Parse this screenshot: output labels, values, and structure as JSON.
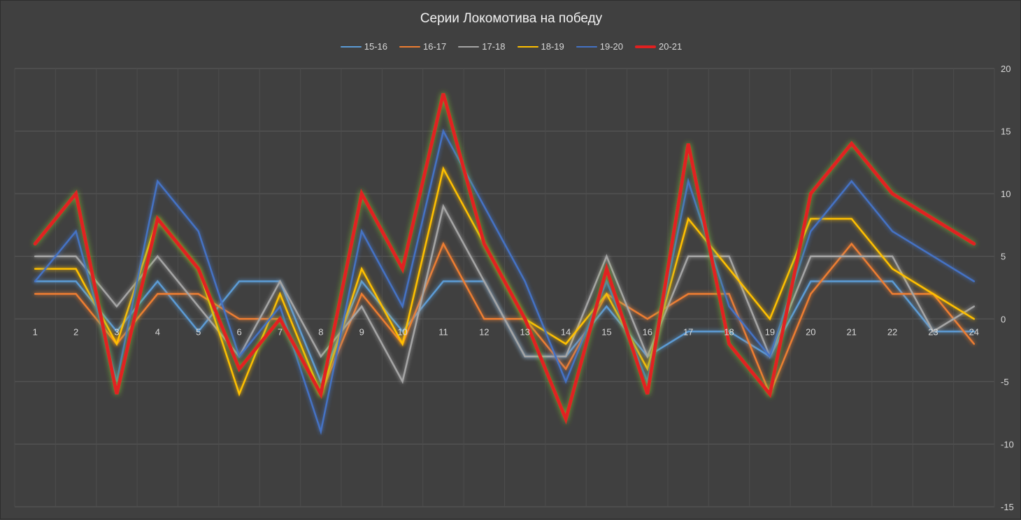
{
  "chart_data": {
    "type": "line",
    "title": "Серии Локомотива на победу",
    "x": [
      "1",
      "2",
      "3",
      "4",
      "5",
      "6",
      "7",
      "8",
      "9",
      "10",
      "11",
      "12",
      "13",
      "14",
      "15",
      "16",
      "17",
      "18",
      "19",
      "20",
      "21",
      "22",
      "23",
      "24"
    ],
    "ylim": [
      -15,
      20
    ],
    "yticks": [
      20,
      15,
      10,
      5,
      0,
      -5,
      -10,
      -15
    ],
    "y_axis_side": "right",
    "legend_position": "top",
    "grid": true,
    "series": [
      {
        "name": "15-16",
        "color": "#5b9bd5",
        "values": [
          3,
          3,
          -1,
          3,
          -1,
          3,
          3,
          -5,
          3,
          -1,
          3,
          3,
          -3,
          -3,
          1,
          -3,
          -1,
          -1,
          -3,
          3,
          3,
          3,
          -1,
          -1
        ]
      },
      {
        "name": "16-17",
        "color": "#ed7d31",
        "values": [
          2,
          2,
          -2,
          2,
          2,
          0,
          0,
          -6,
          2,
          -2,
          6,
          0,
          0,
          -4,
          2,
          0,
          2,
          2,
          -6,
          2,
          6,
          2,
          2,
          -2
        ]
      },
      {
        "name": "17-18",
        "color": "#a5a5a5",
        "values": [
          5,
          5,
          1,
          5,
          1,
          -3,
          3,
          -3,
          1,
          -5,
          9,
          3,
          -3,
          -3,
          5,
          -3,
          5,
          5,
          -3,
          5,
          5,
          5,
          -1,
          1
        ]
      },
      {
        "name": "18-19",
        "color": "#ffc000",
        "values": [
          4,
          4,
          -2,
          8,
          4,
          -6,
          2,
          -6,
          4,
          -2,
          12,
          6,
          0,
          -2,
          2,
          -4,
          8,
          4,
          0,
          8,
          8,
          4,
          2,
          0
        ]
      },
      {
        "name": "19-20",
        "color": "#4472c4",
        "values": [
          3,
          7,
          -5,
          11,
          7,
          -3,
          1,
          -9,
          7,
          1,
          15,
          9,
          3,
          -5,
          3,
          -5,
          11,
          1,
          -3,
          7,
          11,
          7,
          5,
          3
        ]
      },
      {
        "name": "20-21",
        "color": "#e02020",
        "values": [
          6,
          10,
          -6,
          8,
          4,
          -4,
          0,
          -6,
          10,
          4,
          18,
          6,
          0,
          -8,
          4,
          -6,
          14,
          -2,
          -6,
          10,
          14,
          10,
          8,
          6
        ]
      }
    ]
  }
}
